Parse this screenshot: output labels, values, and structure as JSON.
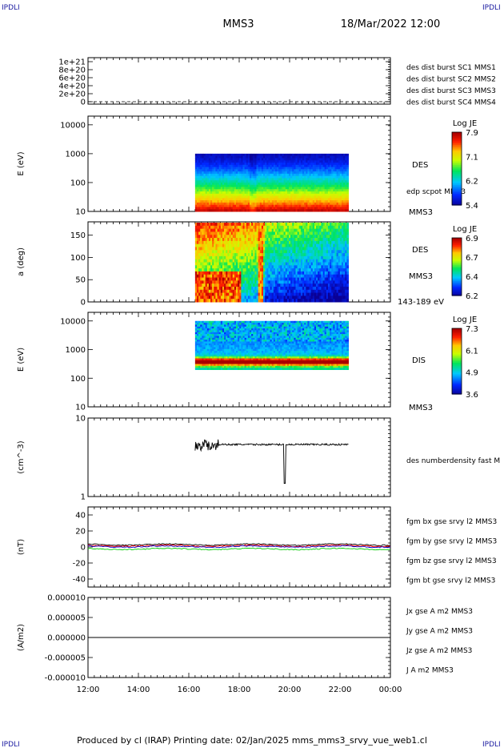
{
  "header": {
    "corner_tl": "IPDLI",
    "corner_tr": "IPDLI",
    "corner_bl": "IPDLI",
    "corner_br": "IPDLI",
    "title": "MMS3",
    "datetime": "18/Mar/2022 12:00"
  },
  "footer": {
    "text": "Produced by cl (IRAP)   Printing date: 02/Jan/2025   mms_mms3_srvy_vue_web1.cl"
  },
  "colors": {
    "c1": "#0000ff",
    "c2": "#dd00dd",
    "c3": "#dd0000",
    "c4": "#00cc00",
    "bx": "#ff0000",
    "by": "#00cc00",
    "bz": "#0000cc",
    "bt": "#000000"
  },
  "time_axis": {
    "start": "12:00",
    "end": "00:00",
    "ticks": [
      "12:00",
      "14:00",
      "16:00",
      "18:00",
      "20:00",
      "22:00",
      "00:00"
    ],
    "data_start": "16:15",
    "data_end": "22:20"
  },
  "chart_data": [
    {
      "type": "line",
      "name": "dist-burst",
      "ylabel": "",
      "ylim": [
        0,
        1.1e+21
      ],
      "yticks": [
        "1e+21",
        "8e+20",
        "6e+20",
        "4e+20",
        "2e+20",
        "0"
      ],
      "legend": [
        {
          "text": "des dist burst SC1 MMS1",
          "color": "c1"
        },
        {
          "text": "des dist burst SC2 MMS2",
          "color": "c2"
        },
        {
          "text": "des dist burst SC3 MMS3",
          "color": "c3"
        },
        {
          "text": "des dist burst SC4 MMS4",
          "color": "c4"
        }
      ],
      "series": [
        {
          "values": [
            0,
            0
          ]
        }
      ]
    },
    {
      "type": "heatmap",
      "name": "des-energy",
      "ylabel": "E (eV)",
      "scale": "log",
      "ylim": [
        10,
        20000
      ],
      "yticks": [
        "10000",
        "1000",
        "100",
        "10"
      ],
      "right_labels": [
        "DES",
        "edp scpot MMS3",
        "MMS3"
      ],
      "colorbar": {
        "title": "Log JE",
        "min": 5.4,
        "max": 7.9,
        "ticks": [
          "7.9",
          "7.1",
          "6.2",
          "5.4"
        ]
      },
      "data_range_ev": [
        10,
        1000
      ]
    },
    {
      "type": "heatmap",
      "name": "des-pitch",
      "ylabel": "a (deg)",
      "ylim": [
        0,
        180
      ],
      "yticks": [
        "150",
        "100",
        "50",
        "0"
      ],
      "right_labels": [
        "DES",
        "MMS3",
        "143-189 eV"
      ],
      "colorbar": {
        "title": "Log JE",
        "min": 6.2,
        "max": 6.9,
        "ticks": [
          "6.9",
          "6.7",
          "6.4",
          "6.2"
        ]
      }
    },
    {
      "type": "heatmap",
      "name": "dis-energy",
      "ylabel": "E (eV)",
      "scale": "log",
      "ylim": [
        10,
        20000
      ],
      "yticks": [
        "10000",
        "1000",
        "100",
        "10"
      ],
      "right_labels": [
        "DIS",
        "MMS3"
      ],
      "colorbar": {
        "title": "Log JE",
        "min": 3.6,
        "max": 7.3,
        "ticks": [
          "7.3",
          "6.1",
          "4.9",
          "3.6"
        ]
      },
      "data_range_ev": [
        200,
        10000
      ]
    },
    {
      "type": "line",
      "name": "density",
      "ylabel": "(cm^-3)",
      "scale": "log",
      "ylim": [
        1,
        10
      ],
      "yticks": [
        "10",
        "1"
      ],
      "legend": [
        {
          "text": "des numberdensity fast M",
          "color": "bt"
        }
      ],
      "level": 4.6
    },
    {
      "type": "line",
      "name": "fgm",
      "ylabel": "(nT)",
      "ylim": [
        -50,
        50
      ],
      "yticks": [
        "40",
        "20",
        "0",
        "-20",
        "-40"
      ],
      "legend": [
        {
          "text": "fgm bx gse srvy l2 MMS3",
          "color": "bx"
        },
        {
          "text": "fgm by gse srvy l2 MMS3",
          "color": "by"
        },
        {
          "text": "fgm bz gse srvy l2 MMS3",
          "color": "bz"
        },
        {
          "text": "fgm bt gse srvy l2 MMS3",
          "color": "bt"
        }
      ],
      "levels": {
        "bx": 1.5,
        "by": -2.5,
        "bz": 0.5,
        "bt": 3
      }
    },
    {
      "type": "line",
      "name": "current",
      "ylabel": "(A/m2)",
      "ylim": [
        -1e-05,
        1e-05
      ],
      "yticks": [
        "0.000010",
        "0.000005",
        "0.000000",
        "-0.000005",
        "-0.000010"
      ],
      "legend": [
        {
          "text": "Jx gse A m2 MMS3",
          "color": "bx"
        },
        {
          "text": "Jy gse A m2 MMS3",
          "color": "by"
        },
        {
          "text": "Jz gse A m2 MMS3",
          "color": "bz"
        },
        {
          "text": "J A m2 MMS3",
          "color": "bt"
        }
      ],
      "level": 0
    }
  ]
}
